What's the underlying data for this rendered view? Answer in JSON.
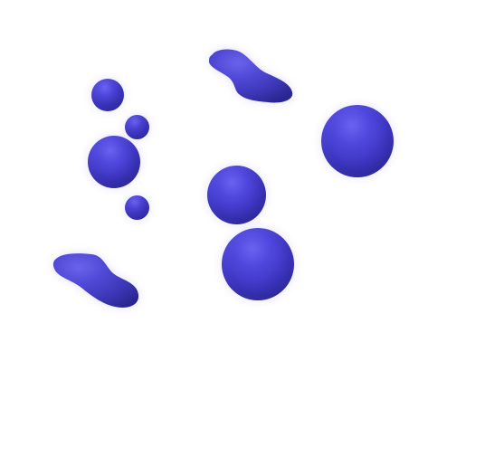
{
  "scene": {
    "background": "#ffffff",
    "shape_color": "#4039bf",
    "shadow_color": "#2a2690",
    "highlight_color": "#6a63ea",
    "shapes": [
      {
        "name": "top-blob",
        "kind": "blob"
      },
      {
        "name": "left-small-sphere-top",
        "kind": "sphere"
      },
      {
        "name": "left-tiny-sphere-upper",
        "kind": "sphere"
      },
      {
        "name": "left-medium-sphere",
        "kind": "sphere"
      },
      {
        "name": "left-tiny-sphere-lower",
        "kind": "sphere"
      },
      {
        "name": "right-large-sphere",
        "kind": "sphere"
      },
      {
        "name": "center-sphere-upper",
        "kind": "sphere"
      },
      {
        "name": "center-sphere-lower",
        "kind": "sphere"
      },
      {
        "name": "bottom-left-blob",
        "kind": "blob"
      }
    ]
  }
}
